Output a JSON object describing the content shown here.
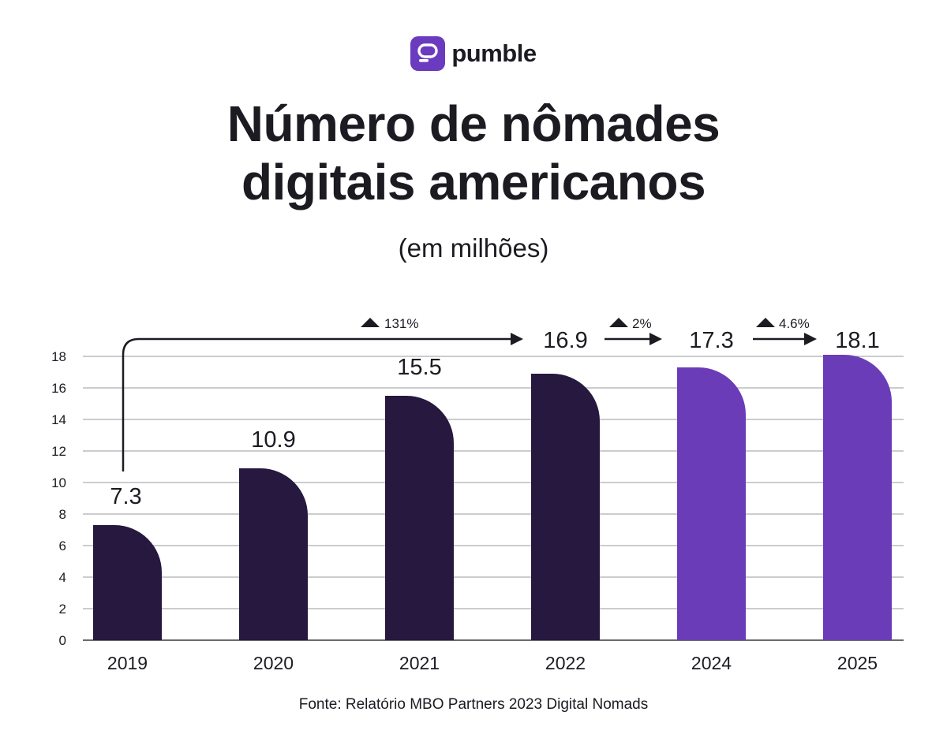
{
  "brand": {
    "name": "pumble",
    "color": "#6b3bbf"
  },
  "title_line1": "Número de nômades",
  "title_line2": "digitais americanos",
  "subtitle": "(em milhões)",
  "source": "Fonte: Relatório MBO Partners 2023 Digital Nomads",
  "chart_data": {
    "type": "bar",
    "title": "Número de nômades digitais americanos",
    "subtitle": "(em milhões)",
    "categories": [
      "2019",
      "2020",
      "2021",
      "2022",
      "2024",
      "2025"
    ],
    "values": [
      7.3,
      10.9,
      15.5,
      16.9,
      17.3,
      18.1
    ],
    "value_labels": [
      "7.3",
      "10.9",
      "15.5",
      "16.9",
      "17.3",
      "18.1"
    ],
    "bar_colors": [
      "#26183f",
      "#26183f",
      "#26183f",
      "#26183f",
      "#6a3cb8",
      "#6a3cb8"
    ],
    "yticks": [
      "0",
      "2",
      "4",
      "6",
      "8",
      "10",
      "12",
      "14",
      "16",
      "18"
    ],
    "ylim": [
      0,
      18
    ],
    "grid": true,
    "annotations": [
      {
        "from": "2019",
        "to": "2022",
        "label": "131%",
        "direction": "up"
      },
      {
        "from": "2022",
        "to": "2024",
        "label": "2%",
        "direction": "up"
      },
      {
        "from": "2024",
        "to": "2025",
        "label": "4.6%",
        "direction": "up"
      }
    ]
  }
}
